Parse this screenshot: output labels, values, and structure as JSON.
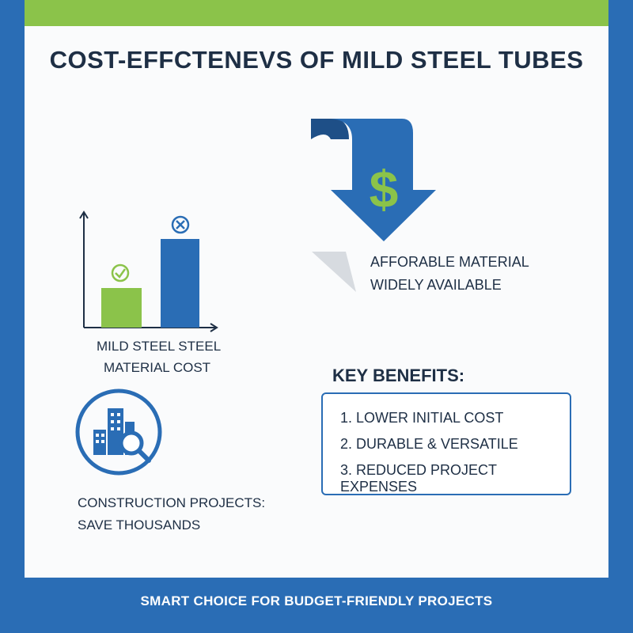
{
  "title": "COST-EFFCTENEVS OF MILD STEEL TUBES",
  "colors": {
    "accent_green": "#8bc34a",
    "brand_blue": "#2a6db5",
    "dark_blue": "#1e4f87",
    "text": "#1e2f45"
  },
  "chart": {
    "label_line1": "MILD STEEL STEEL",
    "label_line2": "MATERIAL COST",
    "bars": [
      {
        "name": "mild-steel-bar",
        "color": "#8bc34a",
        "status": "check-icon",
        "value": 0.45
      },
      {
        "name": "other-material-bar",
        "color": "#2a6db5",
        "status": "x-circle-icon",
        "value": 1.0
      }
    ]
  },
  "arrow": {
    "icon": "dollar-down-arrow-icon",
    "symbol": "$"
  },
  "affordable": {
    "line1": "AFFORABLE MATERIAL",
    "line2": "WIDELY AVAILABLE"
  },
  "construction": {
    "icon": "building-search-icon",
    "line1": "CONSTRUCTION PROJECTS:",
    "line2": "SAVE THOUSANDS"
  },
  "key_benefits": {
    "title": "KEY BENEFITS:",
    "items": [
      "1. LOWER INITIAL COST",
      "2. DURABLE & VERSATILE",
      "3.  REDUCED PROJECT EXPENSES"
    ]
  },
  "footer": "SMART CHOICE FOR BUDGET-FRIENDLY PROJECTS"
}
